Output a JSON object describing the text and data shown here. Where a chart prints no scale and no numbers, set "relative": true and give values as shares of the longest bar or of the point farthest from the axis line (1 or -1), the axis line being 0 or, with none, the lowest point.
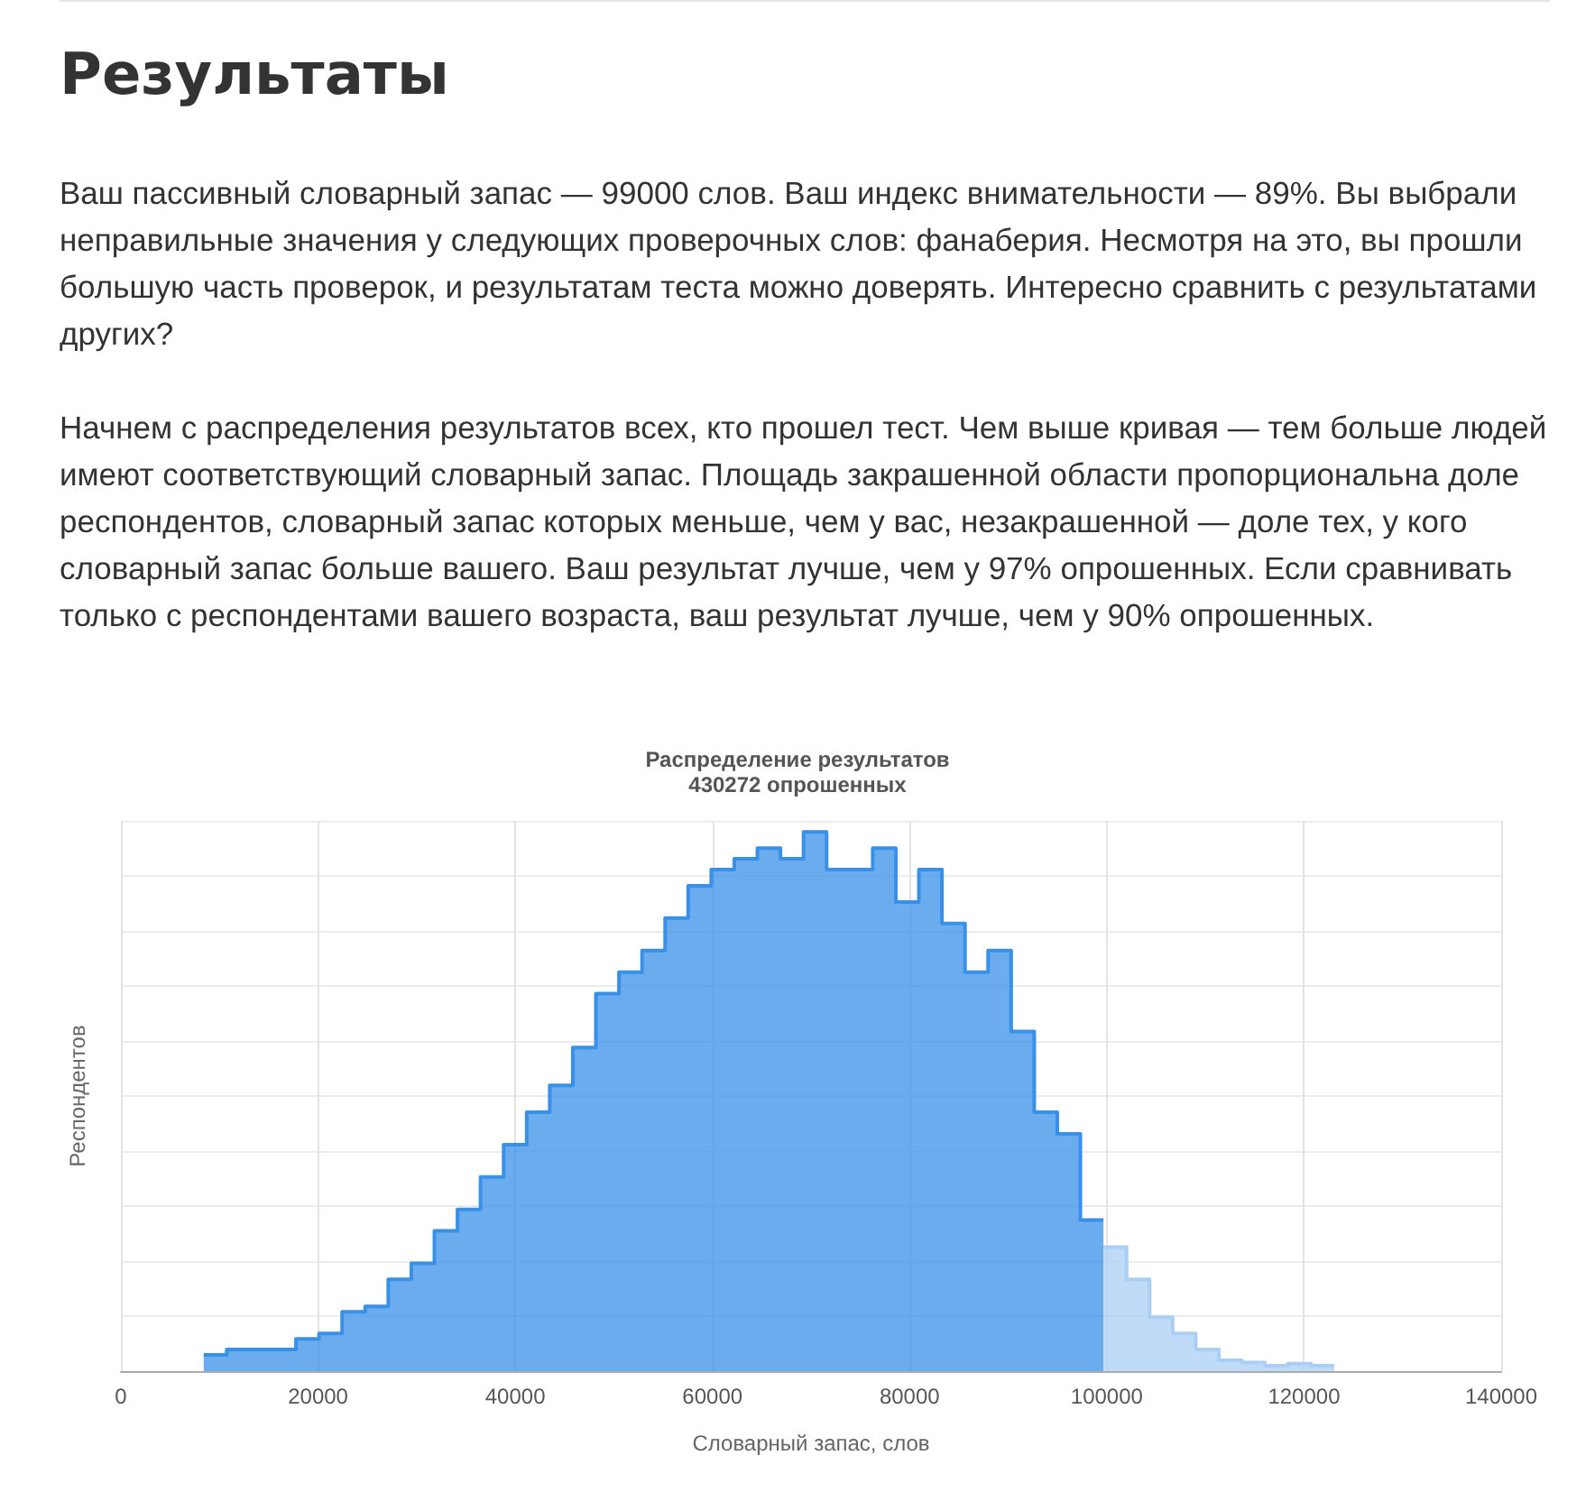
{
  "chart_data": {
    "type": "area",
    "title": "Распределение результатов",
    "subtitle": "430272 опрошенных",
    "xlabel": "Словарный запас, слов",
    "ylabel": "Респондентов",
    "relative": true,
    "annotations": [
      "Результаты",
      "Ваш пассивный словарный запас — 99000 слов. Ваш индекс внимательности — 89%. Вы выбрали неправильные значения у следующих проверочных слов: фанаберия. Несмотря на это, вы прошли большую часть проверок, и результатам теста можно доверять. Интересно сравнить с результатами других?",
      "Начнем с распределения результатов всех, кто прошел тест. Чем выше кривая — тем больше людей имеют соответствующий словарный запас. Площадь закрашенной области пропорциональна доле респондентов, словарный запас которых меньше, чем у вас, незакрашенной — доле тех, у кого словарный запас больше вашего. Ваш результат лучше, чем у 97% опрошенных. Если сравнивать только с респондентами вашего возраста, ваш результат лучше, чем у 90% опрошенных."
    ],
    "series": [
      {
        "color": "#3990e8",
        "x": [
          8400,
          10740,
          10740,
          13080,
          13080,
          15420,
          15420,
          17760,
          17760,
          20100,
          20100,
          22440,
          22440,
          24780,
          24780,
          27120,
          27120,
          29460,
          29460,
          31800,
          31800,
          34140,
          34140,
          36480,
          36480,
          38820,
          38820,
          41160,
          41160,
          43500,
          43500,
          45840,
          45840,
          48180,
          48180,
          50520,
          50520,
          52860,
          52860,
          55200,
          55200,
          57540,
          57540,
          59880,
          59880,
          62220,
          62220,
          64560,
          64560,
          66900,
          66900,
          69240,
          69240,
          71580,
          71580,
          73920,
          73920,
          76260,
          76260,
          78600,
          78600,
          80940,
          80940,
          83280,
          83280,
          85620,
          85620,
          87960,
          87960,
          90300,
          90300,
          92640,
          92640,
          94980,
          94980,
          97320,
          97320,
          99660
        ],
        "values": [
          0.03,
          0.03,
          0.04,
          0.04,
          0.04,
          0.04,
          0.04,
          0.04,
          0.06,
          0.06,
          0.07,
          0.07,
          0.11,
          0.11,
          0.12,
          0.12,
          0.17,
          0.17,
          0.2,
          0.2,
          0.26,
          0.26,
          0.3,
          0.3,
          0.36,
          0.36,
          0.42,
          0.42,
          0.48,
          0.48,
          0.53,
          0.53,
          0.6,
          0.6,
          0.7,
          0.7,
          0.74,
          0.74,
          0.78,
          0.78,
          0.84,
          0.84,
          0.9,
          0.9,
          0.93,
          0.93,
          0.95,
          0.95,
          0.97,
          0.97,
          0.95,
          0.95,
          1,
          1,
          0.93,
          0.93,
          0.93,
          0.93,
          0.97,
          0.97,
          0.87,
          0.87,
          0.93,
          0.93,
          0.83,
          0.83,
          0.74,
          0.74,
          0.78,
          0.78,
          0.63,
          0.63,
          0.48,
          0.48,
          0.44,
          0.44,
          0.28,
          0.28
        ]
      },
      {
        "color": "#a9cff5",
        "x": [
          99660,
          102000,
          102000,
          104340,
          104340,
          106680,
          106680,
          109020,
          109020,
          111360,
          111360,
          113700,
          113700,
          116040,
          116040,
          118380,
          118380,
          120720,
          120720,
          123060
        ],
        "values": [
          0.23,
          0.23,
          0.17,
          0.17,
          0.1,
          0.1,
          0.07,
          0.07,
          0.04,
          0.04,
          0.02,
          0.02,
          0.016,
          0.016,
          0.01,
          0.01,
          0.014,
          0.014,
          0.01,
          0.01
        ]
      }
    ],
    "xlim": [
      0,
      140000
    ],
    "xticks": [
      0,
      20000,
      40000,
      60000,
      80000,
      100000,
      120000,
      140000
    ],
    "grid": true
  }
}
